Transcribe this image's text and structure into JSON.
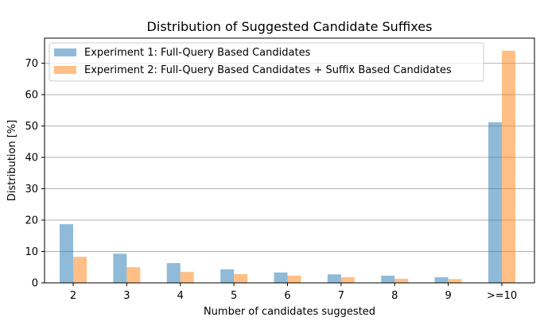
{
  "chart_data": {
    "type": "bar",
    "title": "Distribution of Suggested Candidate Suffixes",
    "xlabel": "Number of candidates suggested",
    "ylabel": "Distribution [%]",
    "categories": [
      "2",
      "3",
      "4",
      "5",
      "6",
      "7",
      "8",
      "9",
      ">=10"
    ],
    "series": [
      {
        "name": "Experiment 1: Full-Query Based Candidates",
        "color": "#1f77b4",
        "values": [
          18.7,
          9.3,
          6.3,
          4.3,
          3.3,
          2.7,
          2.3,
          1.8,
          51.2
        ]
      },
      {
        "name": "Experiment 2: Full-Query Based Candidates + Suffix Based Candidates",
        "color": "#ff7f0e",
        "values": [
          8.3,
          5.0,
          3.5,
          2.8,
          2.3,
          1.8,
          1.3,
          1.2,
          74.0
        ]
      }
    ],
    "ylim": [
      0,
      78
    ],
    "yticks": [
      0,
      10,
      20,
      30,
      40,
      50,
      60,
      70
    ],
    "grid": "horizontal",
    "legend_position": "top-left"
  }
}
